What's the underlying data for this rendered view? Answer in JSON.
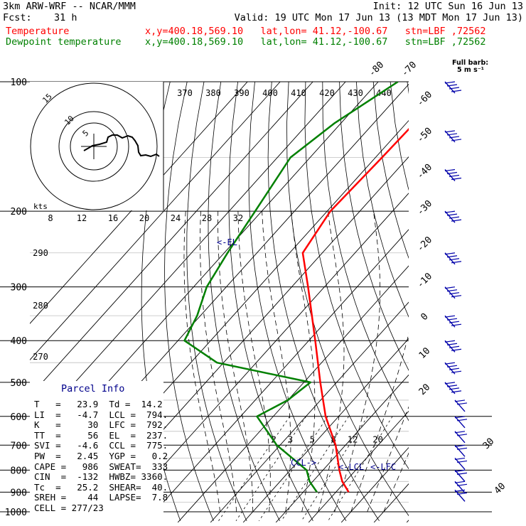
{
  "header": {
    "model": "3km ARW-WRF -- NCAR/MMM",
    "init": "Init: 12 UTC Sun 16 Jun 13",
    "fcst_label": "Fcst:",
    "fcst_value": "31 h",
    "valid": "Valid: 19 UTC Mon 17 Jun 13 (13 MDT Mon 17 Jun 13)",
    "temp_label": "Temperature",
    "dew_label": "Dewpoint temperature",
    "loc": "x,y=400.18,569.10   lat,lon= 41.12,-100.67   stn=LBF ,72562",
    "colors": {
      "temp": "#ff0000",
      "dew": "#008000",
      "barb": "#0000aa",
      "hodo": "#000000"
    }
  },
  "barb_legend": {
    "line1": "Full barb:",
    "line2": "5 m s⁻¹"
  },
  "chart_data": {
    "type": "skew-T log-P diagram",
    "y_axis": "pressure (hPa), log scale",
    "pressure_levels": [
      100,
      200,
      300,
      400,
      500,
      600,
      700,
      800,
      900,
      1000
    ],
    "isotherm_labels_C": [
      -80,
      -70,
      -60,
      -50,
      -40,
      -30,
      -20,
      -10,
      0,
      10,
      20,
      30,
      40
    ],
    "theta_labels_K": [
      370,
      380,
      390,
      400,
      410,
      420,
      430,
      440
    ],
    "dry_adiabat_side_labels_K": [
      290,
      280,
      270
    ],
    "mixing_ratio_labels_gkg": [
      2,
      3,
      5,
      8,
      12,
      20
    ],
    "series": [
      {
        "name": "Temperature",
        "points": [
          [
            100,
            -57
          ],
          [
            150,
            -58
          ],
          [
            200,
            -59
          ],
          [
            250,
            -56
          ],
          [
            300,
            -45
          ],
          [
            400,
            -28
          ],
          [
            500,
            -15
          ],
          [
            600,
            -4
          ],
          [
            700,
            7
          ],
          [
            800,
            15
          ],
          [
            850,
            19
          ],
          [
            900,
            23.9
          ]
        ]
      },
      {
        "name": "Dewpoint temperature",
        "points": [
          [
            100,
            -74
          ],
          [
            125,
            -82
          ],
          [
            150,
            -86
          ],
          [
            200,
            -82
          ],
          [
            250,
            -79
          ],
          [
            300,
            -76
          ],
          [
            350,
            -71
          ],
          [
            400,
            -68
          ],
          [
            450,
            -52
          ],
          [
            500,
            -18
          ],
          [
            550,
            -20
          ],
          [
            600,
            -25
          ],
          [
            700,
            -11
          ],
          [
            800,
            5
          ],
          [
            850,
            9
          ],
          [
            900,
            14.2
          ]
        ]
      }
    ],
    "annotations": [
      "<-EL",
      "CCL->",
      "<-LCL",
      "<-LFC"
    ],
    "hodograph": {
      "speed_unit": "kts",
      "speed_labels": [
        8,
        12,
        16,
        20,
        24,
        28,
        32
      ],
      "ring_labels": [
        "5",
        "10",
        "15"
      ]
    },
    "wind_barb_pressures": [
      100,
      130,
      160,
      200,
      250,
      300,
      350,
      400,
      450,
      500,
      550,
      600,
      650,
      700,
      750,
      800,
      850,
      890
    ]
  },
  "parcel_info": {
    "title": "Parcel Info",
    "rows": [
      "T   =   23.9  Td =  14.2",
      "LI  =   -4.7  LCL =  794.",
      "K   =     30  LFC =  792.",
      "TT  =     56  EL  =  237.",
      "SVI =   -4.6  CCL =  775.",
      "PW  =   2.45  YGP =   0.2",
      "CAPE =   986  SWEAT=  333",
      "CIN  =  -132  HWBZ= 3360.",
      "Tc  =   25.2  SHEAR=  40.",
      "SREH =    44  LAPSE=  7.8",
      "CELL = 277/23"
    ]
  }
}
